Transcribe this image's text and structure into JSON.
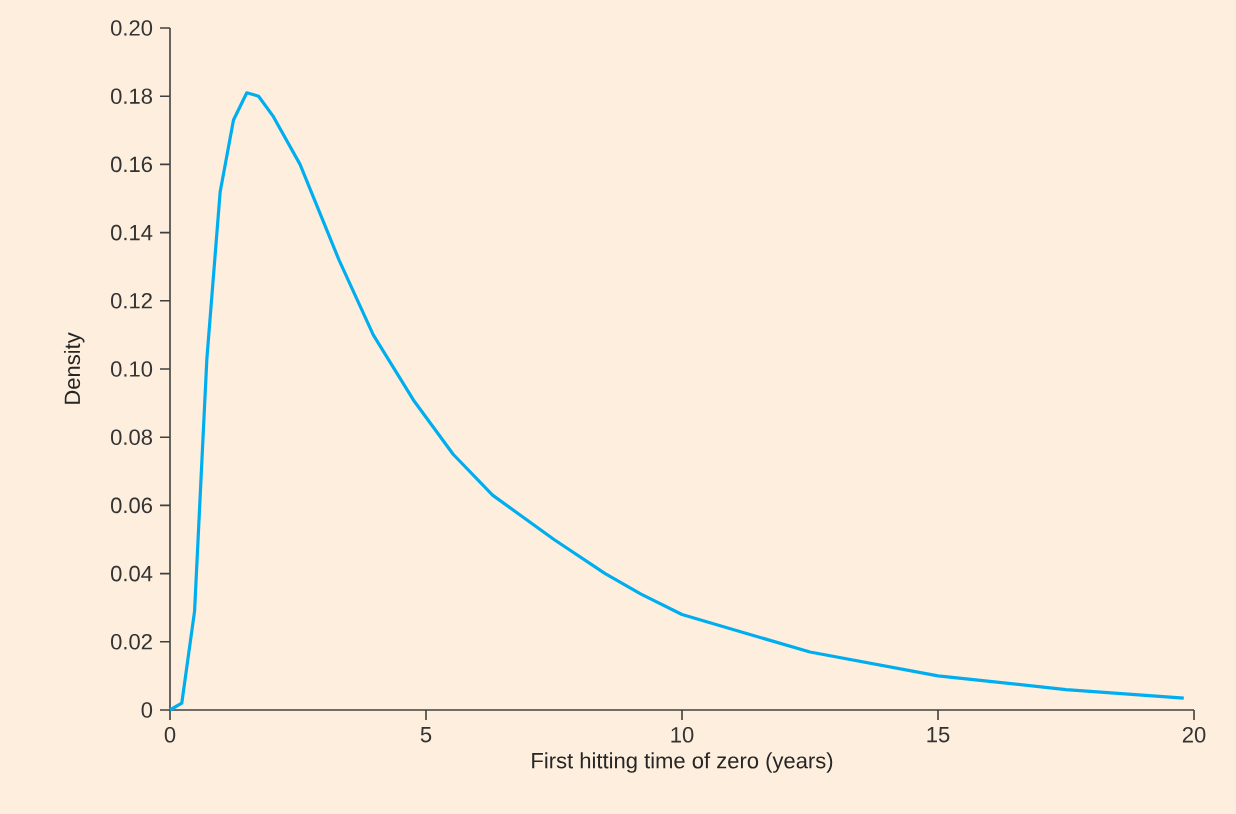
{
  "chart_data": {
    "type": "line",
    "xlabel": "First hitting time of zero (years)",
    "ylabel": "Density",
    "xlim": [
      0,
      20
    ],
    "xticks": [
      0,
      5,
      10,
      15,
      20
    ],
    "ylim": [
      0,
      0.2
    ],
    "yticks": [
      0,
      0.02,
      0.04,
      0.06,
      0.08,
      {
        "value": 0.1,
        "label": "0.10"
      },
      0.12,
      0.14,
      0.16,
      0.18,
      {
        "value": 0.2,
        "label": "0.20"
      }
    ],
    "grid": false,
    "marker": "none",
    "line_style": "solid",
    "series": [
      {
        "color": "#00aeef",
        "x": [
          0,
          0.23,
          0.48,
          0.72,
          0.98,
          1.24,
          1.5,
          1.73,
          2.02,
          2.54,
          3.3,
          3.97,
          4.75,
          5.53,
          6.3,
          7.5,
          8.5,
          9.2,
          10,
          12.5,
          15,
          17.5,
          19.8
        ],
        "values": [
          0,
          0.002,
          0.029,
          0.103,
          0.152,
          0.173,
          0.181,
          0.18,
          0.174,
          0.16,
          0.132,
          0.11,
          0.091,
          0.075,
          0.063,
          0.05,
          0.04,
          0.034,
          0.028,
          0.017,
          0.01,
          0.006,
          0.0035
        ]
      }
    ]
  }
}
